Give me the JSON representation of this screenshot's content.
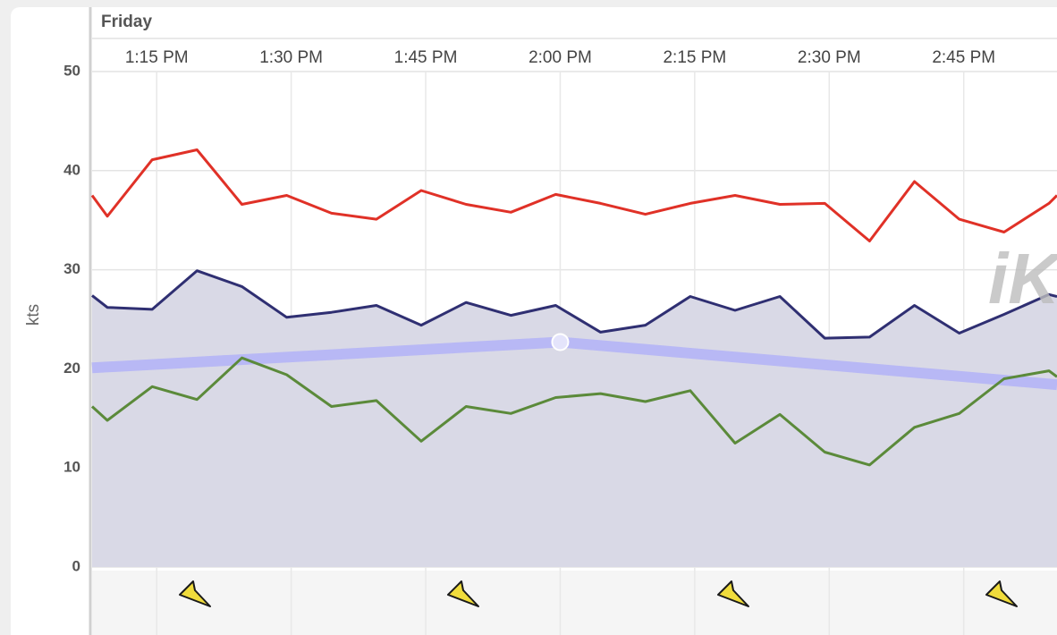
{
  "chart_data": {
    "type": "line",
    "day_label": "Friday",
    "y_label": "kts",
    "watermark": "iK",
    "x": [
      787.8,
      789.5,
      794.5,
      799.5,
      804.5,
      809.5,
      814.5,
      819.5,
      824.5,
      829.5,
      834.5,
      839.5,
      844.5,
      849.5,
      854.5,
      859.5,
      864.5,
      869.5,
      874.5,
      879.5,
      884.5,
      889.5,
      894.5,
      895.4
    ],
    "xlim": [
      787.8,
      895.4
    ],
    "xticks": [
      {
        "value": 795,
        "label": "1:15 PM"
      },
      {
        "value": 810,
        "label": "1:30 PM"
      },
      {
        "value": 825,
        "label": "1:45 PM"
      },
      {
        "value": 840,
        "label": "2:00 PM"
      },
      {
        "value": 855,
        "label": "2:15 PM"
      },
      {
        "value": 870,
        "label": "2:30 PM"
      },
      {
        "value": 885,
        "label": "2:45 PM"
      }
    ],
    "ylim": [
      0,
      50
    ],
    "yticks": [
      0,
      10,
      20,
      30,
      40,
      50
    ],
    "grid": true,
    "series": [
      {
        "color": "#e03127",
        "values": [
          37.5,
          35.4,
          41.1,
          42.1,
          36.6,
          37.5,
          35.7,
          35.1,
          38.0,
          36.6,
          35.8,
          37.6,
          36.7,
          35.6,
          36.7,
          37.5,
          36.6,
          36.7,
          32.9,
          38.9,
          35.1,
          33.8,
          36.7,
          37.5
        ]
      },
      {
        "color": "#2f2f72",
        "fill": "#d9d9e6",
        "values": [
          27.4,
          26.2,
          26.0,
          29.9,
          28.3,
          25.2,
          25.7,
          26.4,
          24.4,
          26.7,
          25.4,
          26.4,
          23.7,
          24.4,
          27.3,
          25.9,
          27.3,
          23.1,
          23.2,
          26.4,
          23.6,
          25.5,
          27.5,
          27.3
        ]
      },
      {
        "color": "#5b8a3a",
        "values": [
          16.2,
          14.8,
          18.2,
          16.9,
          21.1,
          19.4,
          16.2,
          16.8,
          12.7,
          16.2,
          15.5,
          17.1,
          17.5,
          16.7,
          17.8,
          12.5,
          15.4,
          11.6,
          10.3,
          14.1,
          15.5,
          19.0,
          19.8,
          19.2
        ]
      }
    ],
    "forecast": {
      "color": "#b8b8f5",
      "x": [
        787.8,
        840,
        895.4
      ],
      "values": [
        20.1,
        22.7,
        18.4
      ],
      "marker_index": 1
    }
  }
}
